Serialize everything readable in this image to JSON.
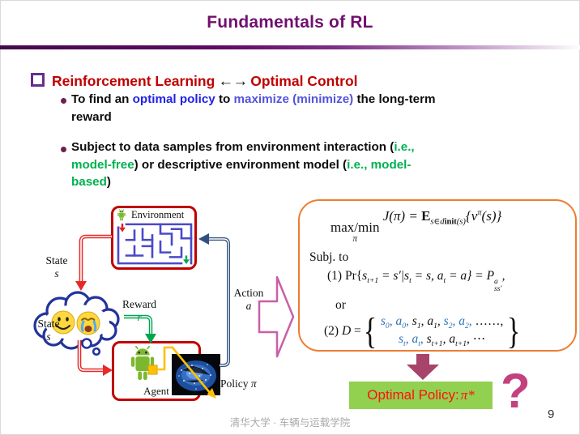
{
  "slide": {
    "title": "Fundamentals of RL",
    "footer": "清华大学 · 车辆与运载学院",
    "page_number": "9"
  },
  "heading": {
    "part1": "Reinforcement Learning",
    "arrows": "←→",
    "part2": "Optimal Control"
  },
  "bullets": {
    "b1": [
      {
        "t": "To find an "
      },
      {
        "t": "optimal policy",
        "c": "blue"
      },
      {
        "t": " to "
      },
      {
        "t": "maximize (minimize)",
        "c": "blue2"
      },
      {
        "t": " the long-term"
      },
      {
        "br": 1
      },
      {
        "t": "reward"
      }
    ],
    "b2": [
      {
        "t": "Subject to data samples from environment interaction ("
      },
      {
        "t": "i.e.,",
        "c": "green"
      },
      {
        "br": 1
      },
      {
        "t": "model-free",
        "c": "green"
      },
      {
        "t": ") or descriptive environment model ("
      },
      {
        "t": "i.e., model-",
        "c": "green"
      },
      {
        "br": 1
      },
      {
        "t": "based",
        "c": "green"
      },
      {
        "t": ")"
      }
    ]
  },
  "diagram": {
    "environment_label": "Environment",
    "agent_label": "Agent",
    "state_label": "State",
    "state_symbol": "s",
    "action_label": "Action",
    "action_symbol": "a",
    "reward_label": "Reward",
    "reward_symbol": "r",
    "policy_label": "Policy",
    "policy_symbol": "π"
  },
  "formula_box": {
    "objective": [
      {
        "k": "under",
        "t": "max/min",
        "u": "π"
      },
      {
        "t": " J(π) = "
      },
      {
        "t": "E",
        "c": "ds"
      },
      {
        "k": "sub",
        "t": "s∈d"
      },
      {
        "k": "sub",
        "t": "init",
        "c": "bb"
      },
      {
        "k": "sub",
        "t": "(s)"
      },
      {
        "t": "{v"
      },
      {
        "k": "sup",
        "t": "π"
      },
      {
        "t": "(s)}"
      }
    ],
    "subject_to": "Subj. to",
    "constraint1": [
      {
        "t": "(1) Pr{",
        "r": 1
      },
      {
        "t": "s"
      },
      {
        "k": "sub",
        "t": "t+1"
      },
      {
        "t": " = s′|s"
      },
      {
        "k": "sub",
        "t": "t"
      },
      {
        "t": " = s, a"
      },
      {
        "k": "sub",
        "t": "t"
      },
      {
        "t": " = a} = "
      },
      {
        "t": "P"
      },
      {
        "k": "supsub",
        "sup": "a",
        "sub": "ss′"
      },
      {
        "t": ","
      }
    ],
    "or_label": "or",
    "c2_prefix": [
      {
        "t": "(2) ",
        "r": 1
      },
      {
        "t": "D"
      },
      {
        "t": " = ",
        "r": 1
      }
    ],
    "c2_open": "{",
    "c2_close": "}",
    "c2_line1": [
      {
        "t": "s",
        "c": "mblue"
      },
      {
        "k": "sub",
        "t": "0",
        "c": "mblue"
      },
      {
        "t": ", ",
        "c": "mblue"
      },
      {
        "t": "a",
        "c": "mblue"
      },
      {
        "k": "sub",
        "t": "0",
        "c": "mblue"
      },
      {
        "t": ", ",
        "c": "mblue"
      },
      {
        "t": "s"
      },
      {
        "k": "sub",
        "t": "1"
      },
      {
        "t": ", a"
      },
      {
        "k": "sub",
        "t": "1"
      },
      {
        "t": ", "
      },
      {
        "t": "s",
        "c": "mblue"
      },
      {
        "k": "sub",
        "t": "2",
        "c": "mblue"
      },
      {
        "t": ", ",
        "c": "mblue"
      },
      {
        "t": "a",
        "c": "mblue"
      },
      {
        "k": "sub",
        "t": "2",
        "c": "mblue"
      },
      {
        "t": ", ",
        "c": "mblue"
      },
      {
        "t": "……,",
        "r": 1
      }
    ],
    "c2_line2": [
      {
        "t": "s",
        "c": "mblue"
      },
      {
        "k": "sub",
        "t": "t",
        "c": "mblue"
      },
      {
        "t": ", ",
        "c": "mblue"
      },
      {
        "t": "a",
        "c": "mblue"
      },
      {
        "k": "sub",
        "t": "t",
        "c": "mblue"
      },
      {
        "t": ", ",
        "c": "mblue"
      },
      {
        "t": "s"
      },
      {
        "k": "sub",
        "t": "t+1"
      },
      {
        "t": ", a"
      },
      {
        "k": "sub",
        "t": "t+1"
      },
      {
        "t": ", ⋯",
        "r": 1
      }
    ]
  },
  "result": {
    "label_prefix": "Optimal Policy: ",
    "label_symbol": "π*",
    "question_mark": "?"
  },
  "colors": {
    "title_purple": "#70106E",
    "heading_red": "#C00000",
    "accent_blue": "#2222E6",
    "accent_blue2": "#5353DC",
    "accent_green": "#00B050",
    "formula_border_orange": "#ED7D31",
    "formula_blue": "#2E74B5",
    "box_red": "#C00000",
    "result_green_bg": "#92D050",
    "result_text_red": "#FF1010",
    "question_pink": "#C2417E",
    "down_arrow_maroon": "#A8436B"
  }
}
